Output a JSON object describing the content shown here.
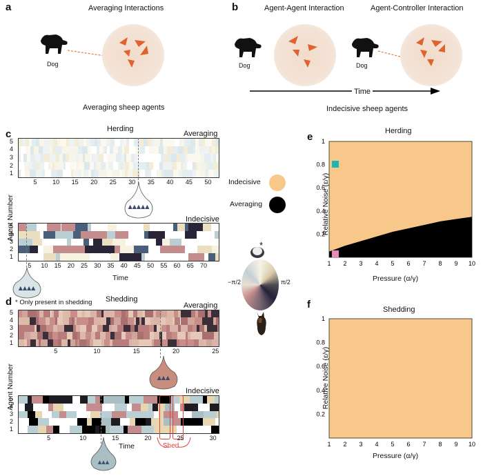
{
  "panel_a": {
    "label": "a",
    "title": "Averaging Interactions",
    "dog_label": "Dog",
    "caption": "Averaging sheep agents"
  },
  "panel_b": {
    "label": "b",
    "title_left": "Agent-Agent Interaction",
    "title_right": "Agent-Controller Interaction",
    "dog_label_left": "Dog",
    "dog_label_right": "Dog",
    "time_label": "Time",
    "caption": "Indecisive sheep agents"
  },
  "panel_c": {
    "label": "c",
    "title": "Herding",
    "avg_label": "Averaging",
    "ind_label": "Indecisive",
    "y_label": "Agent Number",
    "x_label": "Time",
    "agents": [
      "5",
      "4",
      "3",
      "2",
      "1"
    ],
    "avg_ticks": [
      "5",
      "10",
      "15",
      "20",
      "25",
      "30",
      "35",
      "40",
      "45",
      "50"
    ],
    "ind_ticks": [
      "5",
      "10",
      "15",
      "20",
      "25",
      "30",
      "35",
      "40",
      "45",
      "50",
      "55",
      "60",
      "65",
      "70"
    ]
  },
  "panel_d": {
    "label": "d",
    "title": "Shedding",
    "note": "* Only present in shedding",
    "avg_label": "Averaging",
    "ind_label": "Indecisive",
    "y_label": "Agent Number",
    "x_label": "Time",
    "shed_label": "Shed",
    "agents": [
      "5",
      "4",
      "3",
      "2",
      "1"
    ],
    "avg_ticks": [
      "5",
      "10",
      "15",
      "20",
      "25"
    ],
    "ind_ticks": [
      "5",
      "10",
      "15",
      "20",
      "25",
      "30"
    ]
  },
  "legend": {
    "indecisive": "Indecisive",
    "averaging": "Averaging",
    "indecisive_color": "#f8c88a",
    "averaging_color": "#000000",
    "wheel_left": "−π/2",
    "wheel_right": "π/2",
    "star": "*"
  },
  "panel_e": {
    "label": "e",
    "title": "Herding",
    "x_label": "Pressure (α/γ)",
    "y_label": "Relative Noise (ε/γ)",
    "x_ticks": [
      "1",
      "2",
      "3",
      "4",
      "5",
      "6",
      "7",
      "8",
      "9",
      "10"
    ],
    "y_ticks": [
      "0.2",
      "0.4",
      "0.6",
      "0.8",
      "1"
    ],
    "marker_cyan": "#1fb5b5",
    "marker_pink": "#e88ab8"
  },
  "panel_f": {
    "label": "f",
    "title": "Shedding",
    "x_label": "Pressure (α/γ)",
    "y_label": "Relative Noise (ε/γ)",
    "x_ticks": [
      "1",
      "2",
      "3",
      "4",
      "5",
      "6",
      "7",
      "8",
      "9",
      "10"
    ],
    "y_ticks": [
      "0.2",
      "0.4",
      "0.6",
      "0.8",
      "1"
    ]
  },
  "chart_data": [
    {
      "type": "heatmap",
      "title": "Herding",
      "xlabel": "Pressure (α/γ)",
      "ylabel": "Relative Noise (ε/γ)",
      "xlim": [
        1,
        10
      ],
      "ylim": [
        0,
        1
      ],
      "regions": [
        "Indecisive",
        "Averaging"
      ],
      "boundary_x": [
        1,
        2,
        3,
        4,
        5,
        6,
        7,
        8,
        9,
        10
      ],
      "boundary_y": [
        0.05,
        0.1,
        0.14,
        0.18,
        0.22,
        0.25,
        0.28,
        0.31,
        0.33,
        0.35
      ]
    },
    {
      "type": "heatmap",
      "title": "Shedding",
      "xlabel": "Pressure (α/γ)",
      "ylabel": "Relative Noise (ε/γ)",
      "xlim": [
        1,
        10
      ],
      "ylim": [
        0,
        1
      ],
      "regions": [
        "Indecisive"
      ]
    }
  ]
}
